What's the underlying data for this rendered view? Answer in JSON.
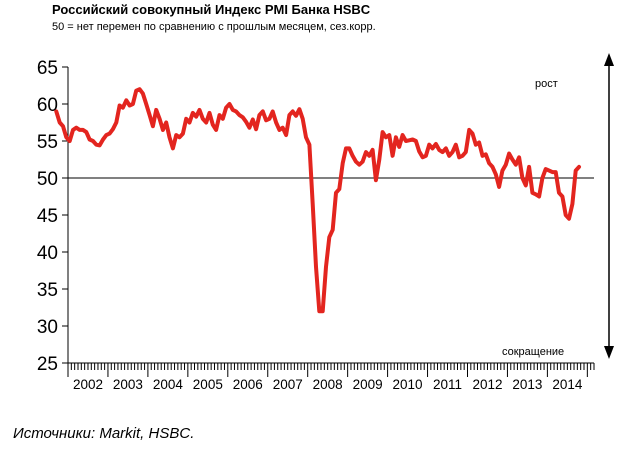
{
  "header": {
    "title": "Российский совокупный Индекс PMI Банка HSBC",
    "subtitle": "50 = нет перемен по сравнению с прошлым месяцем, сез.корр."
  },
  "footer": {
    "source": "Источники: Markit, HSBC."
  },
  "colors": {
    "line": "#e3251f",
    "axis": "#000000",
    "arrow": "#000000"
  },
  "chart_data": {
    "type": "line",
    "title": "Российский совокупный Индекс PMI Банка HSBC",
    "subtitle": "50 = нет перемен по сравнению с прошлым месяцем, сез.корр.",
    "ylim": [
      25,
      65
    ],
    "yticks": [
      25,
      30,
      35,
      40,
      45,
      50,
      55,
      60,
      65
    ],
    "x_categories": [
      "2002",
      "2003",
      "2004",
      "2005",
      "2006",
      "2007",
      "2008",
      "2009",
      "2010",
      "2011",
      "2012",
      "2013",
      "2014"
    ],
    "reference_line": 50,
    "grid": false,
    "annotations": {
      "up": "рост",
      "down": "сокращение"
    },
    "series": [
      {
        "x_start": "2001-09",
        "frequency": "monthly",
        "values": [
          59.0,
          57.5,
          57.0,
          55.5,
          55.0,
          56.5,
          56.8,
          56.5,
          56.5,
          56.2,
          55.2,
          55.0,
          54.5,
          54.4,
          55.2,
          55.8,
          56.0,
          56.6,
          57.5,
          59.8,
          59.5,
          60.5,
          59.8,
          60.0,
          61.8,
          62.0,
          61.4,
          60.0,
          58.5,
          57.0,
          59.2,
          58.0,
          56.5,
          57.5,
          55.5,
          54.0,
          55.8,
          55.5,
          56.0,
          58.0,
          57.5,
          58.8,
          58.3,
          59.2,
          58.0,
          57.5,
          58.8,
          57.2,
          56.5,
          58.5,
          58.0,
          59.5,
          60.0,
          59.2,
          59.0,
          58.5,
          58.2,
          57.6,
          56.8,
          57.9,
          56.6,
          58.5,
          59.0,
          57.8,
          58.0,
          59.0,
          57.5,
          56.5,
          56.8,
          55.8,
          58.5,
          59.0,
          58.4,
          59.3,
          58.0,
          55.5,
          54.5,
          46.5,
          38.0,
          32.0,
          32.0,
          38.0,
          42.0,
          43.0,
          48.0,
          48.5,
          52.0,
          54.0,
          54.0,
          53.0,
          52.2,
          51.8,
          52.2,
          53.5,
          53.0,
          53.8,
          49.7,
          52.5,
          56.2,
          55.5,
          55.8,
          53.0,
          55.5,
          54.2,
          55.8,
          55.0,
          55.1,
          55.2,
          55.0,
          53.6,
          52.8,
          53.0,
          54.5,
          54.0,
          54.6,
          53.8,
          53.5,
          54.0,
          53.0,
          53.5,
          54.5,
          52.8,
          53.0,
          53.5,
          56.5,
          56.0,
          54.5,
          54.8,
          53.0,
          53.2,
          52.0,
          51.5,
          50.5,
          48.8,
          51.0,
          51.8,
          53.3,
          52.5,
          51.8,
          52.8,
          50.0,
          49.0,
          51.5,
          48.0,
          47.8,
          47.5,
          50.0,
          51.2,
          51.0,
          50.8,
          50.8,
          48.0,
          47.5,
          45.0,
          44.5,
          46.5,
          51.0,
          51.5
        ]
      }
    ]
  }
}
